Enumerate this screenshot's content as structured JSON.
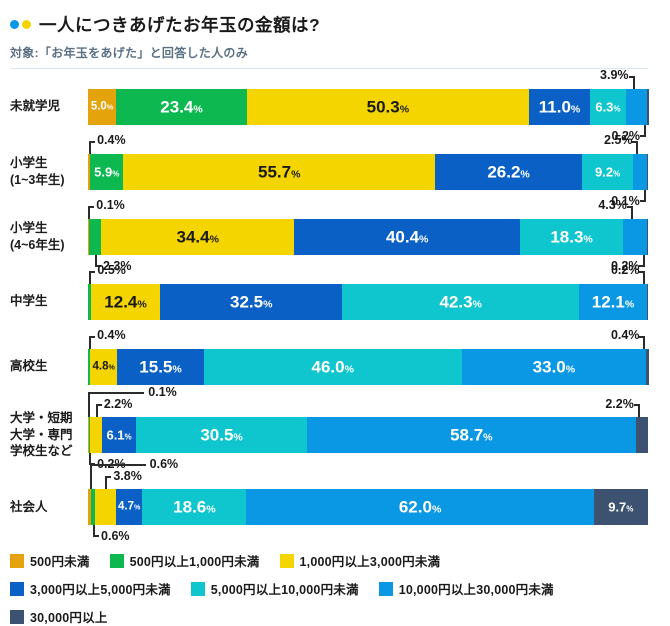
{
  "header": {
    "title": "一人につきあげたお年玉の金額は?",
    "subtitle": "対象:「お年玉をあげた」と回答した人のみ",
    "accent_dots": [
      "#0a97e4",
      "#f5d500"
    ]
  },
  "chart_data": {
    "type": "bar",
    "stacked": true,
    "orientation": "horizontal",
    "unit": "%",
    "xlim": [
      0,
      100
    ],
    "legend_position": "bottom",
    "legend": [
      {
        "label": "500円未満",
        "color": "#e5a30b"
      },
      {
        "label": "500円以上1,000円未満",
        "color": "#0cb84f"
      },
      {
        "label": "1,000円以上3,000円未満",
        "color": "#f5d500"
      },
      {
        "label": "3,000円以上5,000円未満",
        "color": "#0a60c5"
      },
      {
        "label": "5,000円以上10,000円未満",
        "color": "#0fc6cf"
      },
      {
        "label": "10,000円以上30,000円未満",
        "color": "#0a97e4"
      },
      {
        "label": "30,000円以上",
        "color": "#3d5270"
      }
    ],
    "categories": [
      "未就学児",
      "小学生\n(1~3年生)",
      "小学生\n(4~6年生)",
      "中学生",
      "高校生",
      "大学・短期\n大学・専門\n学校生など",
      "社会人"
    ],
    "rows": [
      {
        "category": "未就学児",
        "segments": [
          {
            "series": 0,
            "v": 5.0,
            "d": "5.0%",
            "pos": "in"
          },
          {
            "series": 1,
            "v": 23.4,
            "d": "23.4%",
            "pos": "in"
          },
          {
            "series": 2,
            "v": 50.3,
            "d": "50.3%",
            "pos": "in"
          },
          {
            "series": 3,
            "v": 11.0,
            "d": "11.0%",
            "pos": "in"
          },
          {
            "series": 4,
            "v": 6.3,
            "d": "6.3%",
            "pos": "in"
          },
          {
            "series": 5,
            "v": 3.9,
            "d": "3.9%",
            "pos": "a-end"
          },
          {
            "series": 6,
            "v": 0.2,
            "d": "0.2%",
            "pos": "b-end"
          }
        ]
      },
      {
        "category": "小学生\n(1~3年生)",
        "segments": [
          {
            "series": 0,
            "v": 0.4,
            "d": "0.4%",
            "pos": "a-start"
          },
          {
            "series": 1,
            "v": 5.9,
            "d": "5.9%",
            "pos": "in"
          },
          {
            "series": 2,
            "v": 55.7,
            "d": "55.7%",
            "pos": "in"
          },
          {
            "series": 3,
            "v": 26.2,
            "d": "26.2%",
            "pos": "in"
          },
          {
            "series": 4,
            "v": 9.2,
            "d": "9.2%",
            "pos": "in"
          },
          {
            "series": 5,
            "v": 2.5,
            "d": "2.5%",
            "pos": "a-end"
          },
          {
            "series": 6,
            "v": 0.1,
            "d": "0.1%",
            "pos": "b-end"
          }
        ]
      },
      {
        "category": "小学生\n(4~6年生)",
        "segments": [
          {
            "series": 0,
            "v": 0.1,
            "d": "0.1%",
            "pos": "a-start"
          },
          {
            "series": 1,
            "v": 2.3,
            "d": "2.3%",
            "pos": "b-start"
          },
          {
            "series": 2,
            "v": 34.4,
            "d": "34.4%",
            "pos": "in"
          },
          {
            "series": 3,
            "v": 40.4,
            "d": "40.4%",
            "pos": "in"
          },
          {
            "series": 4,
            "v": 18.3,
            "d": "18.3%",
            "pos": "in"
          },
          {
            "series": 5,
            "v": 4.3,
            "d": "4.3%",
            "pos": "a-end"
          },
          {
            "series": 6,
            "v": 0.2,
            "d": "0.2%",
            "pos": "b-end"
          }
        ]
      },
      {
        "category": "中学生",
        "segments": [
          {
            "series": 1,
            "v": 0.5,
            "d": "0.5%",
            "pos": "a-start"
          },
          {
            "series": 2,
            "v": 12.4,
            "d": "12.4%",
            "pos": "in"
          },
          {
            "series": 3,
            "v": 32.5,
            "d": "32.5%",
            "pos": "in"
          },
          {
            "series": 4,
            "v": 42.3,
            "d": "42.3%",
            "pos": "in"
          },
          {
            "series": 5,
            "v": 12.1,
            "d": "12.1%",
            "pos": "in"
          },
          {
            "series": 6,
            "v": 0.2,
            "d": "0.2%",
            "pos": "a-end"
          }
        ]
      },
      {
        "category": "高校生",
        "segments": [
          {
            "series": 1,
            "v": 0.4,
            "d": "0.4%",
            "pos": "a-start"
          },
          {
            "series": 2,
            "v": 4.8,
            "d": "4.8%",
            "pos": "in"
          },
          {
            "series": 3,
            "v": 15.5,
            "d": "15.5%",
            "pos": "in"
          },
          {
            "series": 4,
            "v": 46.0,
            "d": "46.0%",
            "pos": "in"
          },
          {
            "series": 5,
            "v": 33.0,
            "d": "33.0%",
            "pos": "in"
          },
          {
            "series": 6,
            "v": 0.4,
            "d": "0.4%",
            "pos": "a-end"
          }
        ]
      },
      {
        "category": "大学・短期\n大学・専門\n学校生など",
        "segments": [
          {
            "series": 0,
            "v": 0.1,
            "d": "0.1%",
            "pos": "a-far"
          },
          {
            "series": 1,
            "v": 0.2,
            "d": "0.2%",
            "pos": "b-start"
          },
          {
            "series": 2,
            "v": 2.2,
            "d": "2.2%",
            "pos": "a-start"
          },
          {
            "series": 3,
            "v": 6.1,
            "d": "6.1%",
            "pos": "in"
          },
          {
            "series": 4,
            "v": 30.5,
            "d": "30.5%",
            "pos": "in"
          },
          {
            "series": 5,
            "v": 58.7,
            "d": "58.7%",
            "pos": "in"
          },
          {
            "series": 6,
            "v": 2.2,
            "d": "2.2%",
            "pos": "a-end"
          }
        ]
      },
      {
        "category": "社会人",
        "segments": [
          {
            "series": 0,
            "v": 0.6,
            "d": "0.6%",
            "pos": "a-far"
          },
          {
            "series": 1,
            "v": 0.6,
            "d": "0.6%",
            "pos": "b-start"
          },
          {
            "series": 2,
            "v": 3.8,
            "d": "3.8%",
            "pos": "a-start"
          },
          {
            "series": 3,
            "v": 4.7,
            "d": "4.7%",
            "pos": "in"
          },
          {
            "series": 4,
            "v": 18.6,
            "d": "18.6%",
            "pos": "in"
          },
          {
            "series": 5,
            "v": 62.0,
            "d": "62.0%",
            "pos": "in"
          },
          {
            "series": 6,
            "v": 9.7,
            "d": "9.7%",
            "pos": "in"
          }
        ]
      }
    ]
  }
}
